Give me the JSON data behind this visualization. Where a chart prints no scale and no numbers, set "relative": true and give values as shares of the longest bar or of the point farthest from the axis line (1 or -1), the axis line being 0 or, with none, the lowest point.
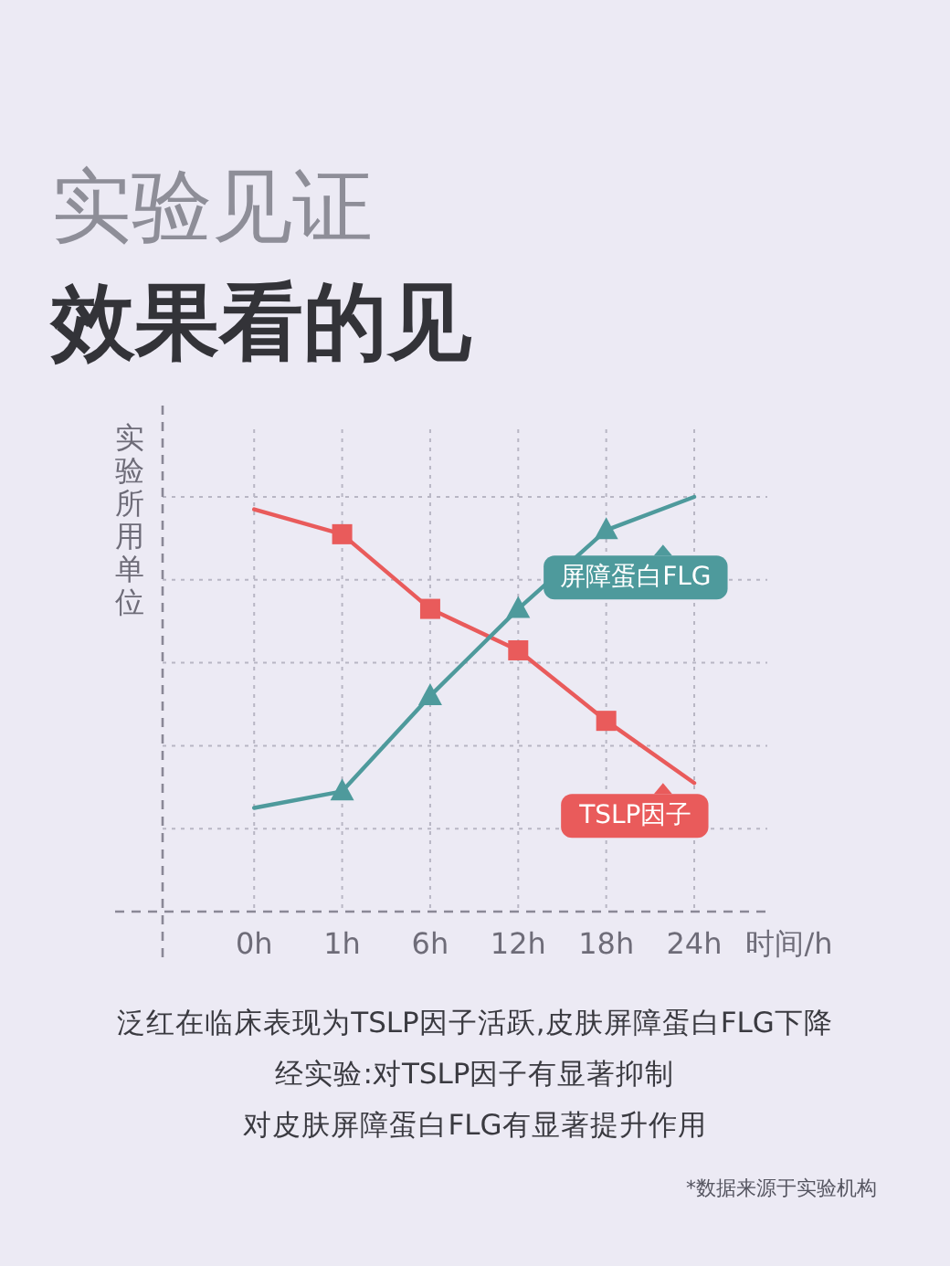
{
  "chart_data": {
    "type": "line",
    "title": "实验见证",
    "subtitle": "效果看的见",
    "ylabel": "实验所用单位",
    "xlabel": "时间/h",
    "relative": true,
    "categories": [
      "0h",
      "1h",
      "6h",
      "12h",
      "18h",
      "24h"
    ],
    "grid": true,
    "legend": "right",
    "line_style": "solid",
    "series": [
      {
        "name": "TSLP因子",
        "color": "#e95b5b",
        "marker": "square",
        "values": [
          0.97,
          0.91,
          0.73,
          0.63,
          0.46,
          0.31
        ]
      },
      {
        "name": "屏障蛋白FLG",
        "color": "#4e9a9c",
        "marker": "triangle",
        "values": [
          0.25,
          0.29,
          0.52,
          0.73,
          0.92,
          1
        ]
      }
    ],
    "annotations": [
      "泛红在临床表现为TSLP因子活跃,皮肤屏障蛋白FLG下降",
      "经实验:对TSLP因子有显著抑制",
      "对皮肤屏障蛋白FLG有显著提升作用",
      "*数据来源于实验机构"
    ]
  }
}
